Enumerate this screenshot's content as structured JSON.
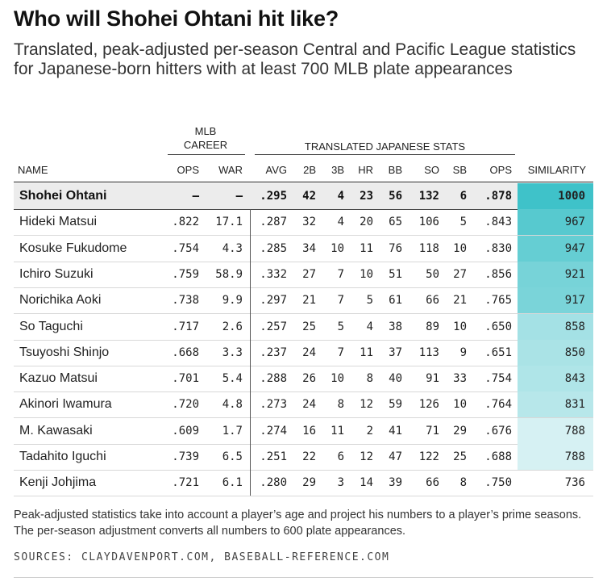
{
  "title": "Who will Shohei Ohtani hit like?",
  "subtitle": "Translated, peak-adjusted per-season Central and Pacific League statistics for Japanese-born hitters with at least 700 MLB plate appearances",
  "groups": {
    "mlb_line1": "MLB",
    "mlb_line2": "CAREER",
    "translated": "TRANSLATED JAPANESE STATS"
  },
  "columns": [
    "NAME",
    "OPS",
    "WAR",
    "AVG",
    "2B",
    "3B",
    "HR",
    "BB",
    "SO",
    "SB",
    "OPS",
    "SIMILARITY"
  ],
  "colors": {
    "sim_high": "#3fc2c9",
    "sim_low": "#eaf7f8",
    "header_row_bg": "#ececec"
  },
  "note": "Peak-adjusted statistics take into account a player’s age and project his numbers to a player’s prime seasons. The per-season adjustment converts all numbers to 600 plate appearances.",
  "source": "SOURCES: CLAYDAVENPORT.COM, BASEBALL-REFERENCE.COM",
  "chart_data": {
    "type": "table",
    "rows": [
      {
        "name": "Shohei Ohtani",
        "ops_mlb": "–",
        "war": "–",
        "avg": ".295",
        "2b": "42",
        "3b": "4",
        "hr": "23",
        "bb": "56",
        "so": "132",
        "sb": "6",
        "ops": ".878",
        "similarity": "1000"
      },
      {
        "name": "Hideki Matsui",
        "ops_mlb": ".822",
        "war": "17.1",
        "avg": ".287",
        "2b": "32",
        "3b": "4",
        "hr": "20",
        "bb": "65",
        "so": "106",
        "sb": "5",
        "ops": ".843",
        "similarity": "967"
      },
      {
        "name": "Kosuke Fukudome",
        "ops_mlb": ".754",
        "war": "4.3",
        "avg": ".285",
        "2b": "34",
        "3b": "10",
        "hr": "11",
        "bb": "76",
        "so": "118",
        "sb": "10",
        "ops": ".830",
        "similarity": "947"
      },
      {
        "name": "Ichiro Suzuki",
        "ops_mlb": ".759",
        "war": "58.9",
        "avg": ".332",
        "2b": "27",
        "3b": "7",
        "hr": "10",
        "bb": "51",
        "so": "50",
        "sb": "27",
        "ops": ".856",
        "similarity": "921"
      },
      {
        "name": "Norichika Aoki",
        "ops_mlb": ".738",
        "war": "9.9",
        "avg": ".297",
        "2b": "21",
        "3b": "7",
        "hr": "5",
        "bb": "61",
        "so": "66",
        "sb": "21",
        "ops": ".765",
        "similarity": "917"
      },
      {
        "name": "So Taguchi",
        "ops_mlb": ".717",
        "war": "2.6",
        "avg": ".257",
        "2b": "25",
        "3b": "5",
        "hr": "4",
        "bb": "38",
        "so": "89",
        "sb": "10",
        "ops": ".650",
        "similarity": "858"
      },
      {
        "name": "Tsuyoshi Shinjo",
        "ops_mlb": ".668",
        "war": "3.3",
        "avg": ".237",
        "2b": "24",
        "3b": "7",
        "hr": "11",
        "bb": "37",
        "so": "113",
        "sb": "9",
        "ops": ".651",
        "similarity": "850"
      },
      {
        "name": "Kazuo Matsui",
        "ops_mlb": ".701",
        "war": "5.4",
        "avg": ".288",
        "2b": "26",
        "3b": "10",
        "hr": "8",
        "bb": "40",
        "so": "91",
        "sb": "33",
        "ops": ".754",
        "similarity": "843"
      },
      {
        "name": "Akinori Iwamura",
        "ops_mlb": ".720",
        "war": "4.8",
        "avg": ".273",
        "2b": "24",
        "3b": "8",
        "hr": "12",
        "bb": "59",
        "so": "126",
        "sb": "10",
        "ops": ".764",
        "similarity": "831"
      },
      {
        "name": "M. Kawasaki",
        "ops_mlb": ".609",
        "war": "1.7",
        "avg": ".274",
        "2b": "16",
        "3b": "11",
        "hr": "2",
        "bb": "41",
        "so": "71",
        "sb": "29",
        "ops": ".676",
        "similarity": "788"
      },
      {
        "name": "Tadahito Iguchi",
        "ops_mlb": ".739",
        "war": "6.5",
        "avg": ".251",
        "2b": "22",
        "3b": "6",
        "hr": "12",
        "bb": "47",
        "so": "122",
        "sb": "25",
        "ops": ".688",
        "similarity": "788"
      },
      {
        "name": "Kenji Johjima",
        "ops_mlb": ".721",
        "war": "6.1",
        "avg": ".280",
        "2b": "29",
        "3b": "3",
        "hr": "14",
        "bb": "39",
        "so": "66",
        "sb": "8",
        "ops": ".750",
        "similarity": "736"
      }
    ]
  }
}
